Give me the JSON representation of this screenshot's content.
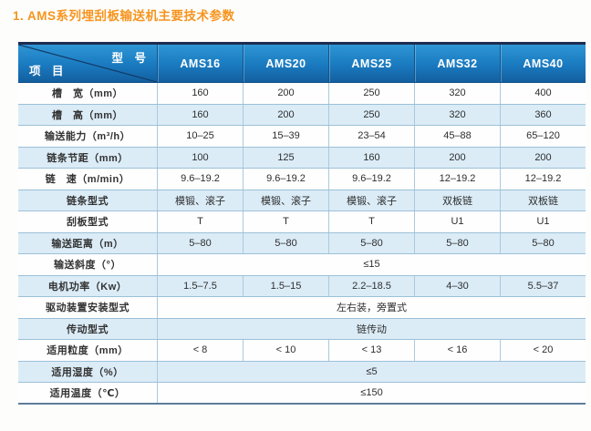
{
  "title": "1. AMS系列埋刮板输送机主要技术参数",
  "colors": {
    "title_orange": "#f7941e",
    "header_blue": "#1b7ac0",
    "header_blue_light": "#2e96d5",
    "header_blue_dark": "#135f9f",
    "header_top_strip": "#1d2c52",
    "row_stripe_blue": "#dbecf7",
    "grid_line": "#9cc0d8",
    "table_bottom_border": "#5e7d9a",
    "text": "#2e2e2e"
  },
  "table": {
    "corner": {
      "top_right": "型　号",
      "bottom_left": "项　目"
    },
    "columns": [
      "AMS16",
      "AMS20",
      "AMS25",
      "AMS32",
      "AMS40"
    ],
    "rows": [
      {
        "label": "槽　宽（mm）",
        "values": [
          "160",
          "200",
          "250",
          "320",
          "400"
        ]
      },
      {
        "label": "槽　高（mm）",
        "values": [
          "160",
          "200",
          "250",
          "320",
          "360"
        ]
      },
      {
        "label": "输送能力（m³/h）",
        "values": [
          "10–25",
          "15–39",
          "23–54",
          "45–88",
          "65–120"
        ]
      },
      {
        "label": "链条节距（mm）",
        "values": [
          "100",
          "125",
          "160",
          "200",
          "200"
        ]
      },
      {
        "label": "链　速（m/min）",
        "values": [
          "9.6–19.2",
          "9.6–19.2",
          "9.6–19.2",
          "12–19.2",
          "12–19.2"
        ]
      },
      {
        "label": "链条型式",
        "values": [
          "模锻、滚子",
          "模锻、滚子",
          "模锻、滚子",
          "双板链",
          "双板链"
        ]
      },
      {
        "label": "刮板型式",
        "values": [
          "T",
          "T",
          "T",
          "U1",
          "U1"
        ]
      },
      {
        "label": "输送距离（m）",
        "values": [
          "5–80",
          "5–80",
          "5–80",
          "5–80",
          "5–80"
        ]
      },
      {
        "label": "输送斜度（°）",
        "merged": "≤15"
      },
      {
        "label": "电机功率（Kw）",
        "values": [
          "1.5–7.5",
          "1.5–15",
          "2.2–18.5",
          "4–30",
          "5.5–37"
        ]
      },
      {
        "label": "驱动装置安装型式",
        "merged": "左右装，旁置式"
      },
      {
        "label": "传动型式",
        "merged": "链传动"
      },
      {
        "label": "适用粒度（mm）",
        "values": [
          "< 8",
          "< 10",
          "< 13",
          "< 16",
          "< 20"
        ]
      },
      {
        "label": "适用湿度（%）",
        "merged": "≤5"
      },
      {
        "label": "适用温度（℃）",
        "merged": "≤150"
      }
    ]
  }
}
